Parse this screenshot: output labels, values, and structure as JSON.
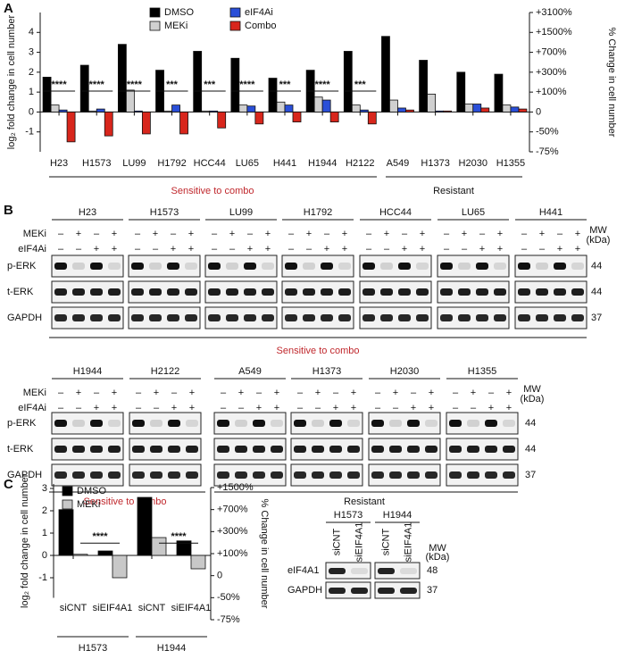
{
  "panel_labels": [
    "A",
    "B",
    "C"
  ],
  "chart_data": [
    {
      "type": "bar",
      "y_label": "log₂ fold change in cell number",
      "y2_label": "% Change in cell number",
      "categories": [
        "H23",
        "H1573",
        "LU99",
        "H1792",
        "HCC44",
        "LU65",
        "H441",
        "H1944",
        "H2122",
        "A549",
        "H1373",
        "H2030",
        "H1355"
      ],
      "series": [
        {
          "name": "DMSO",
          "color": "#000000",
          "values": [
            1.75,
            2.35,
            3.4,
            2.1,
            3.05,
            2.7,
            1.7,
            2.1,
            3.05,
            3.8,
            2.6,
            2.0,
            1.9
          ]
        },
        {
          "name": "MEKi",
          "color": "#d0d0d0",
          "values": [
            0.35,
            0.05,
            1.1,
            0.05,
            0.05,
            0.35,
            0.5,
            0.75,
            0.35,
            0.6,
            0.9,
            0.4,
            0.35
          ]
        },
        {
          "name": "eIF4Ai",
          "color": "#2a4fd8",
          "values": [
            0.1,
            0.15,
            0.05,
            0.35,
            0.05,
            0.3,
            0.35,
            0.6,
            0.1,
            0.2,
            0.05,
            0.4,
            0.25
          ]
        },
        {
          "name": "Combo",
          "color": "#d8261c",
          "values": [
            -1.5,
            -1.2,
            -1.1,
            -1.1,
            -0.8,
            -0.6,
            -0.5,
            -0.5,
            -0.6,
            0.1,
            0.05,
            0.2,
            0.15
          ]
        }
      ],
      "annotations": [
        "****",
        "****",
        "****",
        "***",
        "***",
        "****",
        "***",
        "****",
        "***"
      ],
      "groups": [
        "Sensitive to combo",
        "Resistant"
      ],
      "ylim": [
        -2,
        5
      ],
      "yticks": [
        -1,
        0,
        1,
        2,
        3,
        4
      ],
      "y2lim": [
        -2,
        5
      ],
      "y2ticks": [
        {
          "value": -2,
          "label": "-75%"
        },
        {
          "value": -1,
          "label": "-50%"
        },
        0,
        {
          "value": 1,
          "label": "+100%"
        },
        {
          "value": 2,
          "label": "+300%"
        },
        {
          "value": 3,
          "label": "+700%"
        },
        {
          "value": 4,
          "label": "+1500%"
        },
        {
          "value": 5,
          "label": "+3100%"
        }
      ]
    },
    {
      "type": "bar",
      "y_label": "log₂ fold change in cell number",
      "y2_label": "% Change in cell number",
      "categories": [
        "siCNT",
        "siEIF4A1",
        "siCNT",
        "siEIF4A1"
      ],
      "groups": [
        "H1573",
        "H1944"
      ],
      "series": [
        {
          "name": "DMSO",
          "color": "#000000",
          "values": [
            2.05,
            0.2,
            2.6,
            0.65
          ]
        },
        {
          "name": "MEKi",
          "color": "#c8c8c8",
          "values": [
            0.05,
            -1.0,
            0.8,
            -0.6
          ]
        }
      ],
      "annotations": [
        "****",
        "****"
      ],
      "ylim": [
        -1.9,
        3.2
      ],
      "yticks": [
        -1,
        0,
        1,
        2,
        3
      ],
      "y2lim": [
        -2,
        4
      ],
      "y2ticks": [
        {
          "value": -2,
          "label": "-75%"
        },
        {
          "value": -1,
          "label": "-50%"
        },
        0,
        {
          "value": 1,
          "label": "+100%"
        },
        {
          "value": 2,
          "label": "+300%"
        },
        {
          "value": 3,
          "label": "+700%"
        },
        {
          "value": 4,
          "label": "+1500%"
        }
      ]
    }
  ],
  "blot_b": {
    "cell_lines_top": [
      "H23",
      "H1573",
      "LU99",
      "H1792",
      "HCC44",
      "LU65",
      "H441"
    ],
    "cell_lines_bottom": [
      "H1944",
      "H2122",
      "A549",
      "H1373",
      "H2030",
      "H1355"
    ],
    "treatments": [
      {
        "name": "MEKi",
        "signs": [
          "–",
          "+",
          "–",
          "+"
        ]
      },
      {
        "name": "eIF4Ai",
        "signs": [
          "–",
          "–",
          "+",
          "+"
        ]
      }
    ],
    "rows": [
      {
        "name": "p-ERK",
        "mw": "44"
      },
      {
        "name": "t-ERK",
        "mw": "44"
      },
      {
        "name": "GAPDH",
        "mw": "37"
      }
    ],
    "mw_header": [
      "MW",
      "(kDa)"
    ],
    "sensitive_label": "Sensitive to combo",
    "resistant_label": "Resistant"
  },
  "blot_c": {
    "cell_lines": [
      "H1573",
      "H1944"
    ],
    "lanes": [
      "siCNT",
      "siEIF4A1"
    ],
    "rows": [
      {
        "name": "eIF4A1",
        "mw": "48"
      },
      {
        "name": "GAPDH",
        "mw": "37"
      }
    ],
    "mw_header": [
      "MW",
      "(kDa)"
    ]
  }
}
